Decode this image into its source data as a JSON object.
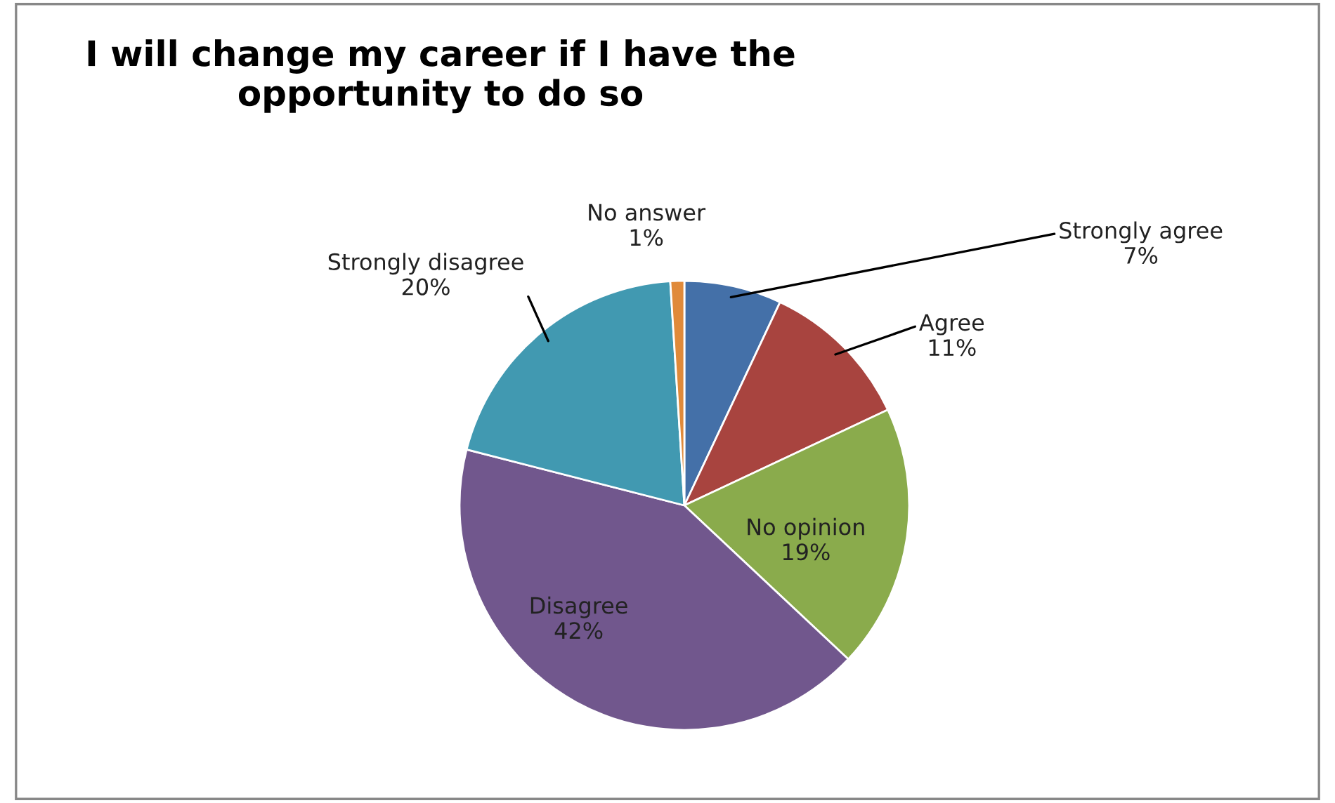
{
  "chart_data": {
    "type": "pie",
    "title": "I will change my career if I have the opportunity to do so",
    "categories": [
      "Strongly agree",
      "Agree",
      "No opinion",
      "Disagree",
      "Strongly disagree",
      "No answer"
    ],
    "values": [
      7,
      11,
      19,
      42,
      20,
      1
    ],
    "colors": [
      "#4470a8",
      "#a8443f",
      "#8aab4c",
      "#71578d",
      "#4199b1",
      "#e08a3a"
    ],
    "value_labels": [
      "7%",
      "11%",
      "19%",
      "42%",
      "20%",
      "1%"
    ],
    "legend": false
  }
}
